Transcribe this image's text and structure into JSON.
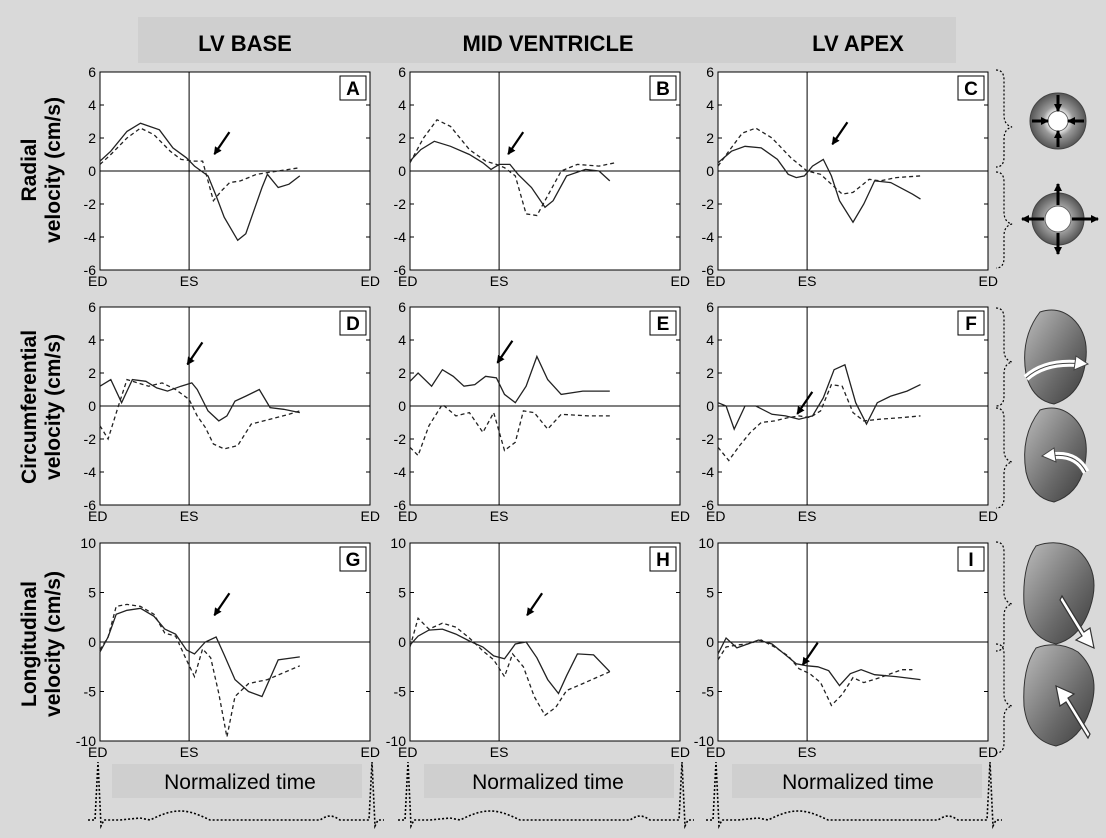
{
  "figure": {
    "columns": [
      "LV BASE",
      "MID VENTRICLE",
      "LV APEX"
    ],
    "row_labels": [
      [
        "Radial",
        "velocity (cm/s)"
      ],
      [
        "Circumferential",
        "velocity (cm/s)"
      ],
      [
        "Longitudinal",
        "velocity (cm/s)"
      ]
    ],
    "bottom_label": "Normalized time",
    "colors": {
      "background": "#d9d9d9",
      "plot": "#ffffff",
      "line": "#333333",
      "axis": "#000000"
    }
  },
  "chart_data": [
    {
      "type": "line",
      "panel": "A",
      "row": 0,
      "col": 0,
      "xticks": [
        "ED",
        "ES",
        "ED"
      ],
      "ylim": [
        -6,
        6
      ],
      "yticks": [
        6,
        4,
        2,
        0,
        -2,
        -4,
        -6
      ],
      "grid": false,
      "series": [
        {
          "style": "solid",
          "x": [
            0,
            0.04,
            0.1,
            0.15,
            0.22,
            0.27,
            0.32,
            0.35,
            0.4,
            0.43,
            0.46,
            0.51,
            0.54,
            0.6,
            0.62,
            0.66,
            0.7,
            0.74
          ],
          "y": [
            0.6,
            1.2,
            2.4,
            2.9,
            2.5,
            1.4,
            0.8,
            0.3,
            -0.3,
            -1.5,
            -2.8,
            -4.2,
            -3.8,
            -1,
            -0.2,
            -1,
            -0.8,
            -0.3
          ]
        },
        {
          "style": "dashed",
          "x": [
            0,
            0.04,
            0.1,
            0.15,
            0.2,
            0.26,
            0.3,
            0.35,
            0.38,
            0.42,
            0.45,
            0.48,
            0.52,
            0.58,
            0.66,
            0.74
          ],
          "y": [
            0.4,
            1,
            2,
            2.6,
            2.2,
            1.2,
            0.7,
            0.6,
            0.6,
            -1.8,
            -1.2,
            -0.7,
            -0.6,
            -0.2,
            0,
            0.2
          ]
        }
      ],
      "annotations": [
        {
          "type": "arrow",
          "x": 0.42,
          "y": 0.9
        }
      ]
    },
    {
      "type": "line",
      "panel": "B",
      "row": 0,
      "col": 1,
      "xticks": [
        "ED",
        "ES",
        "ED"
      ],
      "ylim": [
        -6,
        6
      ],
      "yticks": [
        6,
        4,
        2,
        0,
        -2,
        -4,
        -6
      ],
      "grid": false,
      "series": [
        {
          "style": "solid",
          "x": [
            0,
            0.04,
            0.09,
            0.15,
            0.22,
            0.27,
            0.3,
            0.33,
            0.37,
            0.4,
            0.45,
            0.5,
            0.53,
            0.58,
            0.65,
            0.7,
            0.74
          ],
          "y": [
            0.6,
            1.3,
            1.8,
            1.5,
            1,
            0.5,
            0.1,
            0.4,
            0.4,
            -0.2,
            -1,
            -2.2,
            -1.8,
            -0.3,
            0.1,
            0,
            -0.6
          ]
        },
        {
          "style": "dashed",
          "x": [
            0,
            0.05,
            0.1,
            0.15,
            0.22,
            0.28,
            0.32,
            0.35,
            0.39,
            0.43,
            0.47,
            0.52,
            0.56,
            0.62,
            0.7,
            0.76
          ],
          "y": [
            0.5,
            2,
            3.1,
            2.7,
            1.3,
            0.6,
            0.4,
            0.2,
            -0.3,
            -2.6,
            -2.7,
            -1.2,
            0,
            0.4,
            0.3,
            0.5
          ]
        }
      ],
      "annotations": [
        {
          "type": "arrow",
          "x": 0.36,
          "y": 0.9
        }
      ]
    },
    {
      "type": "line",
      "panel": "C",
      "row": 0,
      "col": 2,
      "xticks": [
        "ED",
        "ES",
        "ED"
      ],
      "ylim": [
        -6,
        6
      ],
      "yticks": [
        6,
        4,
        2,
        0,
        -2,
        -4,
        -6
      ],
      "grid": false,
      "series": [
        {
          "style": "solid",
          "x": [
            0,
            0.05,
            0.1,
            0.16,
            0.22,
            0.26,
            0.29,
            0.32,
            0.35,
            0.39,
            0.42,
            0.45,
            0.5,
            0.54,
            0.58,
            0.64,
            0.72,
            0.75
          ],
          "y": [
            0.5,
            1.2,
            1.5,
            1.4,
            0.7,
            -0.2,
            -0.4,
            -0.3,
            0.3,
            0.7,
            -0.3,
            -1.8,
            -3.1,
            -2,
            -0.6,
            -0.7,
            -1.4,
            -1.7
          ]
        },
        {
          "style": "dashed",
          "x": [
            0,
            0.04,
            0.09,
            0.14,
            0.2,
            0.27,
            0.33,
            0.38,
            0.42,
            0.46,
            0.5,
            0.53,
            0.56,
            0.6,
            0.66,
            0.75
          ],
          "y": [
            0.3,
            1.2,
            2.3,
            2.6,
            2,
            0.8,
            0,
            -0.2,
            -0.8,
            -1.4,
            -1.3,
            -0.9,
            -0.5,
            -0.6,
            -0.4,
            -0.3
          ]
        }
      ],
      "annotations": [
        {
          "type": "arrow",
          "x": 0.42,
          "y": 1.5
        }
      ]
    },
    {
      "type": "line",
      "panel": "D",
      "row": 1,
      "col": 0,
      "xticks": [
        "ED",
        "ES",
        "ED"
      ],
      "ylim": [
        -6,
        6
      ],
      "yticks": [
        6,
        4,
        2,
        0,
        -2,
        -4,
        -6
      ],
      "grid": false,
      "series": [
        {
          "style": "solid",
          "x": [
            0,
            0.04,
            0.08,
            0.12,
            0.17,
            0.21,
            0.25,
            0.3,
            0.34,
            0.36,
            0.4,
            0.44,
            0.47,
            0.5,
            0.54,
            0.59,
            0.63,
            0.68,
            0.74
          ],
          "y": [
            1.2,
            1.6,
            0.2,
            1.6,
            1.5,
            1.1,
            0.9,
            1.2,
            1.4,
            1,
            -0.3,
            -0.9,
            -0.6,
            0.3,
            0.6,
            1,
            -0.1,
            -0.2,
            -0.4
          ]
        },
        {
          "style": "dashed",
          "x": [
            0,
            0.03,
            0.07,
            0.1,
            0.14,
            0.18,
            0.23,
            0.28,
            0.33,
            0.36,
            0.39,
            0.42,
            0.46,
            0.51,
            0.56,
            0.63,
            0.7,
            0.74
          ],
          "y": [
            -1.2,
            -2,
            0.1,
            1.6,
            1.4,
            1.2,
            1.4,
            1,
            0.4,
            -0.6,
            -1.3,
            -2.3,
            -2.6,
            -2.4,
            -1.1,
            -0.8,
            -0.5,
            -0.3
          ]
        }
      ],
      "annotations": [
        {
          "type": "arrow",
          "x": 0.32,
          "y": 2.4
        }
      ]
    },
    {
      "type": "line",
      "panel": "E",
      "row": 1,
      "col": 1,
      "xticks": [
        "ED",
        "ES",
        "ED"
      ],
      "ylim": [
        -6,
        6
      ],
      "yticks": [
        6,
        4,
        2,
        0,
        -2,
        -4,
        -6
      ],
      "grid": false,
      "series": [
        {
          "style": "solid",
          "x": [
            0,
            0.03,
            0.08,
            0.12,
            0.16,
            0.2,
            0.24,
            0.28,
            0.32,
            0.35,
            0.39,
            0.43,
            0.47,
            0.51,
            0.56,
            0.64,
            0.74
          ],
          "y": [
            1.5,
            2,
            1.2,
            2.2,
            1.8,
            1.2,
            1.3,
            1.8,
            1.7,
            0.7,
            0.2,
            1.2,
            3,
            1.6,
            0.7,
            0.9,
            0.9
          ]
        },
        {
          "style": "dashed",
          "x": [
            0,
            0.03,
            0.07,
            0.12,
            0.17,
            0.22,
            0.27,
            0.31,
            0.35,
            0.39,
            0.42,
            0.46,
            0.51,
            0.56,
            0.66,
            0.74
          ],
          "y": [
            -2.5,
            -3,
            -1.2,
            0.1,
            -0.6,
            -0.4,
            -1.6,
            -0.4,
            -2.7,
            -2.2,
            -0.3,
            -0.4,
            -1.4,
            -0.5,
            -0.6,
            -0.6
          ]
        }
      ],
      "annotations": [
        {
          "type": "arrow",
          "x": 0.32,
          "y": 2.5
        }
      ]
    },
    {
      "type": "line",
      "panel": "F",
      "row": 1,
      "col": 2,
      "xticks": [
        "ED",
        "ES",
        "ED"
      ],
      "ylim": [
        -6,
        6
      ],
      "yticks": [
        6,
        4,
        2,
        0,
        -2,
        -4,
        -6
      ],
      "grid": false,
      "series": [
        {
          "style": "solid",
          "x": [
            0,
            0.03,
            0.06,
            0.1,
            0.14,
            0.2,
            0.25,
            0.3,
            0.35,
            0.39,
            0.43,
            0.47,
            0.51,
            0.55,
            0.59,
            0.64,
            0.7,
            0.75
          ],
          "y": [
            0.2,
            0,
            -1.4,
            0,
            0,
            -0.5,
            -0.6,
            -0.8,
            -0.6,
            0.5,
            2.2,
            2.5,
            0.2,
            -1.1,
            0.2,
            0.6,
            0.9,
            1.3
          ]
        },
        {
          "style": "dashed",
          "x": [
            0,
            0.04,
            0.08,
            0.12,
            0.16,
            0.21,
            0.26,
            0.3,
            0.34,
            0.38,
            0.42,
            0.46,
            0.5,
            0.54,
            0.6,
            0.68,
            0.75
          ],
          "y": [
            -2.5,
            -3.3,
            -2.4,
            -1.6,
            -1,
            -0.9,
            -0.7,
            -0.6,
            -0.7,
            -0.3,
            1.3,
            1.2,
            -0.4,
            -0.9,
            -0.8,
            -0.7,
            -0.6
          ]
        }
      ],
      "annotations": [
        {
          "type": "arrow",
          "x": 0.29,
          "y": -0.6
        }
      ]
    },
    {
      "type": "line",
      "panel": "G",
      "row": 2,
      "col": 0,
      "xticks": [
        "ED",
        "ES",
        "ED"
      ],
      "ylim": [
        -10,
        10
      ],
      "yticks": [
        10,
        5,
        0,
        -5,
        -10
      ],
      "grid": false,
      "series": [
        {
          "style": "solid",
          "x": [
            0,
            0.03,
            0.06,
            0.1,
            0.15,
            0.2,
            0.24,
            0.28,
            0.32,
            0.35,
            0.39,
            0.43,
            0.46,
            0.5,
            0.55,
            0.6,
            0.66,
            0.74
          ],
          "y": [
            -1,
            0.5,
            2.8,
            3.2,
            3.4,
            2.6,
            1.3,
            0.8,
            -0.8,
            -1.2,
            0,
            0.5,
            -1.3,
            -3.8,
            -5,
            -5.5,
            -1.8,
            -1.5
          ]
        },
        {
          "style": "dashed",
          "x": [
            0,
            0.03,
            0.06,
            0.1,
            0.15,
            0.2,
            0.24,
            0.28,
            0.32,
            0.35,
            0.38,
            0.41,
            0.44,
            0.47,
            0.5,
            0.55,
            0.62,
            0.74
          ],
          "y": [
            -0.8,
            0.5,
            3.6,
            3.8,
            3.6,
            2.8,
            0.9,
            0.6,
            -1.8,
            -3.5,
            -0.7,
            -1.6,
            -5.2,
            -9.6,
            -5.5,
            -4.2,
            -3.8,
            -2.4
          ]
        }
      ],
      "annotations": [
        {
          "type": "arrow",
          "x": 0.42,
          "y": 2.5
        }
      ]
    },
    {
      "type": "line",
      "panel": "H",
      "row": 2,
      "col": 1,
      "xticks": [
        "ED",
        "ES",
        "ED"
      ],
      "ylim": [
        -10,
        10
      ],
      "yticks": [
        10,
        5,
        0,
        -5,
        -10
      ],
      "grid": false,
      "series": [
        {
          "style": "solid",
          "x": [
            0,
            0.03,
            0.07,
            0.12,
            0.17,
            0.22,
            0.27,
            0.31,
            0.35,
            0.39,
            0.43,
            0.47,
            0.51,
            0.55,
            0.58,
            0.62,
            0.68,
            0.74
          ],
          "y": [
            -0.3,
            0.6,
            1.2,
            1.3,
            0.8,
            0.1,
            -0.5,
            -1.4,
            -1.7,
            -0.2,
            0,
            -1.6,
            -3.8,
            -5.2,
            -3.4,
            -1.2,
            -1.3,
            -3
          ]
        },
        {
          "style": "dashed",
          "x": [
            0,
            0.03,
            0.07,
            0.12,
            0.17,
            0.22,
            0.27,
            0.31,
            0.35,
            0.38,
            0.42,
            0.46,
            0.5,
            0.54,
            0.58,
            0.64,
            0.74
          ],
          "y": [
            -0.5,
            2.4,
            1.3,
            1.9,
            1.5,
            0.4,
            -0.9,
            -1.8,
            -3.5,
            -1.2,
            -2.5,
            -5.5,
            -7.4,
            -6.6,
            -4.9,
            -4.2,
            -3
          ]
        }
      ],
      "annotations": [
        {
          "type": "arrow",
          "x": 0.43,
          "y": 2.5
        }
      ]
    },
    {
      "type": "line",
      "panel": "I",
      "row": 2,
      "col": 2,
      "xticks": [
        "ED",
        "ES",
        "ED"
      ],
      "ylim": [
        -10,
        10
      ],
      "yticks": [
        10,
        5,
        0,
        -5,
        -10
      ],
      "grid": false,
      "series": [
        {
          "style": "solid",
          "x": [
            0,
            0.03,
            0.07,
            0.11,
            0.15,
            0.2,
            0.25,
            0.29,
            0.33,
            0.37,
            0.41,
            0.45,
            0.49,
            0.53,
            0.58,
            0.66,
            0.75
          ],
          "y": [
            -1.2,
            0.4,
            -0.6,
            -0.2,
            0.2,
            -0.2,
            -1.3,
            -2.2,
            -2.4,
            -2.5,
            -2.9,
            -4.4,
            -3.2,
            -2.8,
            -3.3,
            -3.5,
            -3.8
          ]
        },
        {
          "style": "dashed",
          "x": [
            0,
            0.03,
            0.07,
            0.11,
            0.16,
            0.21,
            0.26,
            0.3,
            0.34,
            0.38,
            0.42,
            0.46,
            0.5,
            0.54,
            0.6,
            0.68,
            0.72
          ],
          "y": [
            -1.8,
            -0.5,
            -0.3,
            -0.2,
            0.2,
            -0.5,
            -1.4,
            -2.7,
            -3.2,
            -4.1,
            -6.4,
            -5.3,
            -3.6,
            -4.1,
            -3.6,
            -2.8,
            -2.8
          ]
        }
      ],
      "annotations": [
        {
          "type": "arrow",
          "x": 0.31,
          "y": -2.5
        }
      ]
    }
  ]
}
